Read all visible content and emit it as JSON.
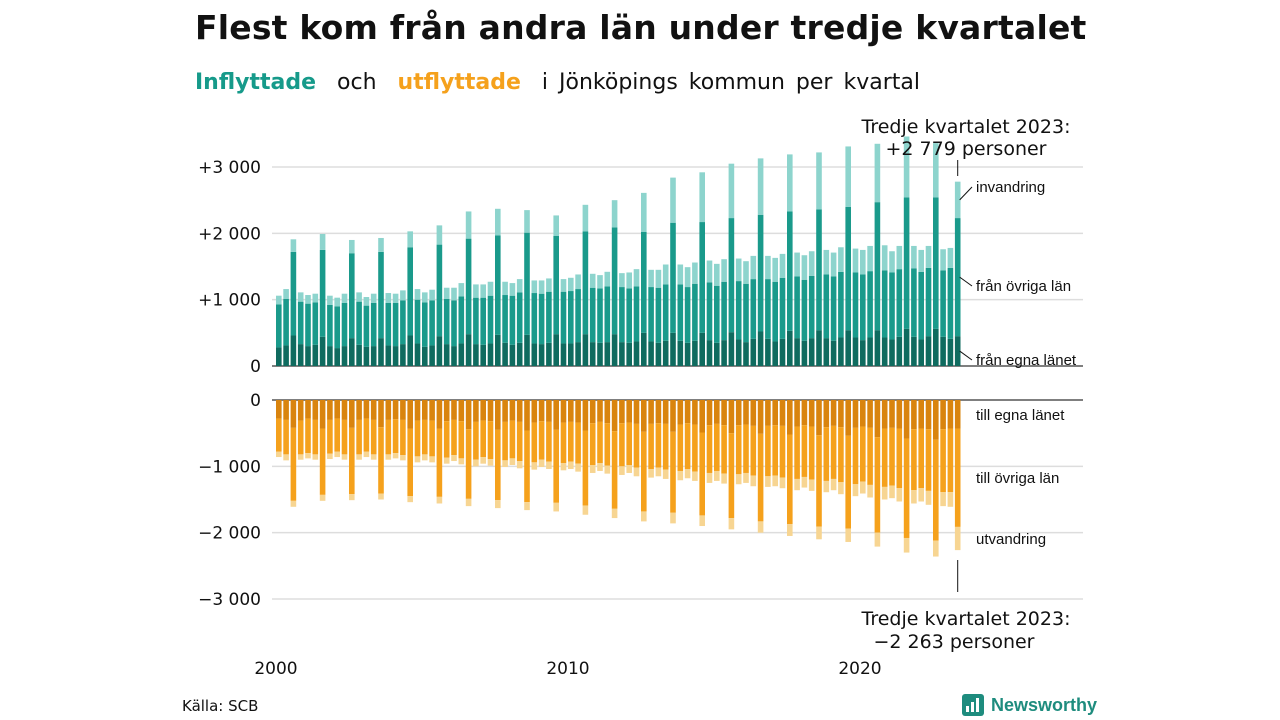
{
  "title": "Flest kom från andra län under tredje kvartalet",
  "subtitle": {
    "inflyttade": "Inflyttade",
    "och": "och",
    "utflyttade": "utflyttade",
    "rest": "i Jönköpings kommun per kvartal"
  },
  "annotation_top": {
    "line1": "Tredje kvartalet 2023:",
    "line2": "+2 779 personer"
  },
  "annotation_bottom": {
    "line1": "Tredje kvartalet 2023:",
    "line2": "−2 263 personer"
  },
  "source": "Källa: SCB",
  "brand": "Newsworthy",
  "colors": {
    "in_egna": "#0f6b5f",
    "in_ovriga": "#1a9a8b",
    "in_invandring": "#8dd4cd",
    "ut_egna": "#d9840e",
    "ut_ovriga": "#f5a11c",
    "ut_utvandring": "#f7d592",
    "grid": "#dddddd",
    "axis": "#333333"
  },
  "chart_data": [
    {
      "type": "bar",
      "stacked": true,
      "panel": "inflyttade",
      "x_start": "2000 Q1",
      "x_end": "2023 Q3",
      "x_tick_labels": [
        "2000",
        "2010",
        "2020"
      ],
      "y_tick_labels": [
        "+3 000",
        "+2 000",
        "+1 000",
        "0"
      ],
      "ylim": [
        0,
        3000
      ],
      "grid": true,
      "series_labels": [
        "invandring",
        "från övriga län",
        "från egna länet"
      ],
      "series": [
        {
          "name": "från egna länet",
          "values": [
            280,
            310,
            460,
            330,
            300,
            320,
            440,
            300,
            270,
            300,
            420,
            320,
            290,
            300,
            420,
            310,
            300,
            330,
            460,
            340,
            290,
            310,
            450,
            330,
            300,
            340,
            480,
            330,
            320,
            340,
            470,
            350,
            320,
            350,
            470,
            340,
            330,
            350,
            480,
            340,
            340,
            360,
            480,
            360,
            350,
            360,
            480,
            360,
            350,
            370,
            500,
            370,
            350,
            380,
            500,
            380,
            350,
            380,
            500,
            390,
            350,
            390,
            510,
            400,
            360,
            410,
            520,
            410,
            370,
            410,
            530,
            420,
            380,
            420,
            540,
            420,
            380,
            430,
            540,
            430,
            390,
            430,
            540,
            430,
            400,
            440,
            560,
            440,
            400,
            450,
            560,
            440,
            410,
            450
          ]
        },
        {
          "name": "från övriga län",
          "values": [
            650,
            700,
            1260,
            640,
            640,
            640,
            1310,
            620,
            630,
            650,
            1280,
            650,
            620,
            650,
            1300,
            640,
            650,
            660,
            1330,
            660,
            670,
            680,
            1380,
            680,
            690,
            710,
            1440,
            700,
            710,
            720,
            1500,
            720,
            740,
            760,
            1540,
            760,
            760,
            770,
            1480,
            780,
            790,
            800,
            1550,
            820,
            820,
            840,
            1610,
            830,
            820,
            830,
            1520,
            820,
            830,
            850,
            1660,
            850,
            840,
            860,
            1670,
            870,
            860,
            880,
            1720,
            880,
            880,
            900,
            1760,
            900,
            900,
            920,
            1800,
            930,
            920,
            940,
            1820,
            960,
            970,
            990,
            1860,
            980,
            990,
            1000,
            1930,
            1010,
            1010,
            1020,
            1980,
            1030,
            1020,
            1030,
            1980,
            1000,
            1070,
            1780
          ]
        },
        {
          "name": "invandring",
          "values": [
            130,
            150,
            190,
            140,
            130,
            130,
            240,
            140,
            130,
            140,
            200,
            140,
            130,
            140,
            210,
            150,
            140,
            150,
            240,
            160,
            150,
            160,
            290,
            170,
            190,
            200,
            410,
            200,
            200,
            210,
            400,
            200,
            190,
            200,
            340,
            190,
            200,
            200,
            310,
            190,
            200,
            220,
            400,
            210,
            200,
            220,
            410,
            210,
            240,
            260,
            590,
            260,
            270,
            300,
            680,
            300,
            300,
            320,
            750,
            330,
            330,
            340,
            820,
            340,
            340,
            350,
            850,
            350,
            360,
            360,
            860,
            360,
            370,
            370,
            860,
            370,
            360,
            370,
            910,
            360,
            370,
            380,
            880,
            380,
            320,
            350,
            920,
            340,
            330,
            330,
            820,
            320,
            300,
            549
          ]
        }
      ]
    },
    {
      "type": "bar",
      "stacked": true,
      "panel": "utflyttade",
      "x_start": "2000 Q1",
      "x_end": "2023 Q3",
      "x_tick_labels": [
        "2000",
        "2010",
        "2020"
      ],
      "y_tick_labels": [
        "0",
        "−1 000",
        "−2 000",
        "−3 000"
      ],
      "ylim": [
        -3000,
        0
      ],
      "grid": true,
      "series_labels": [
        "till egna länet",
        "till övriga län",
        "utvandring"
      ],
      "series": [
        {
          "name": "till egna länet",
          "values": [
            -280,
            -300,
            -420,
            -310,
            -280,
            -300,
            -430,
            -300,
            -280,
            -300,
            -420,
            -300,
            -280,
            -300,
            -410,
            -300,
            -290,
            -300,
            -430,
            -310,
            -300,
            -310,
            -430,
            -320,
            -300,
            -320,
            -440,
            -330,
            -310,
            -320,
            -450,
            -330,
            -310,
            -330,
            -460,
            -340,
            -320,
            -330,
            -450,
            -340,
            -330,
            -340,
            -460,
            -350,
            -330,
            -350,
            -470,
            -350,
            -340,
            -360,
            -480,
            -360,
            -350,
            -360,
            -480,
            -370,
            -350,
            -370,
            -490,
            -380,
            -360,
            -380,
            -500,
            -380,
            -370,
            -390,
            -510,
            -390,
            -380,
            -390,
            -520,
            -400,
            -380,
            -400,
            -530,
            -410,
            -390,
            -410,
            -540,
            -420,
            -400,
            -420,
            -560,
            -430,
            -420,
            -430,
            -580,
            -440,
            -430,
            -440,
            -600,
            -440,
            -430,
            -430
          ]
        },
        {
          "name": "till övriga län",
          "values": [
            -500,
            -520,
            -1100,
            -510,
            -520,
            -520,
            -1000,
            -510,
            -500,
            -520,
            -1000,
            -520,
            -500,
            -520,
            -1000,
            -520,
            -510,
            -530,
            -1020,
            -540,
            -520,
            -540,
            -1030,
            -550,
            -530,
            -560,
            -1050,
            -570,
            -550,
            -570,
            -1060,
            -580,
            -570,
            -590,
            -1080,
            -600,
            -580,
            -600,
            -1100,
            -610,
            -600,
            -620,
            -1130,
            -630,
            -620,
            -640,
            -1170,
            -650,
            -640,
            -660,
            -1200,
            -680,
            -670,
            -690,
            -1220,
            -700,
            -690,
            -710,
            -1250,
            -720,
            -710,
            -730,
            -1280,
            -740,
            -730,
            -750,
            -1320,
            -760,
            -760,
            -780,
            -1350,
            -790,
            -780,
            -800,
            -1380,
            -810,
            -800,
            -830,
            -1400,
            -850,
            -830,
            -860,
            -1440,
            -880,
            -870,
            -900,
            -1500,
            -920,
            -900,
            -930,
            -1520,
            -950,
            -960,
            -1483
          ]
        },
        {
          "name": "utvandring",
          "values": [
            -80,
            -90,
            -90,
            -80,
            -80,
            -80,
            -90,
            -80,
            -80,
            -80,
            -90,
            -80,
            -80,
            -80,
            -90,
            -80,
            -80,
            -80,
            -90,
            -90,
            -90,
            -90,
            -100,
            -90,
            -90,
            -90,
            -110,
            -100,
            -100,
            -100,
            -120,
            -100,
            -100,
            -110,
            -120,
            -110,
            -110,
            -110,
            -130,
            -110,
            -110,
            -120,
            -140,
            -120,
            -120,
            -120,
            -140,
            -130,
            -120,
            -130,
            -150,
            -130,
            -130,
            -140,
            -160,
            -140,
            -140,
            -140,
            -160,
            -150,
            -150,
            -150,
            -170,
            -150,
            -150,
            -160,
            -170,
            -160,
            -160,
            -160,
            -180,
            -170,
            -160,
            -170,
            -190,
            -170,
            -170,
            -180,
            -200,
            -180,
            -180,
            -190,
            -210,
            -190,
            -190,
            -200,
            -220,
            -200,
            -200,
            -210,
            -240,
            -210,
            -220,
            -350
          ]
        }
      ]
    }
  ]
}
